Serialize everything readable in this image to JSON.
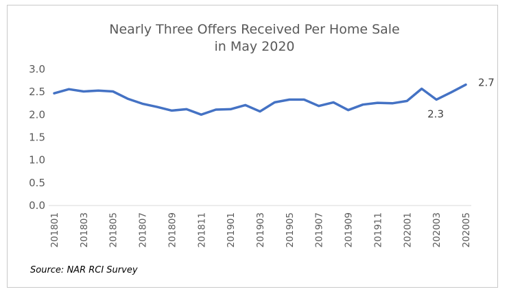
{
  "chart_data": {
    "type": "line",
    "title": [
      "Nearly Three Offers Received Per Home Sale",
      "in May 2020"
    ],
    "xlabel": "",
    "ylabel": "",
    "ylim": [
      0,
      3.0
    ],
    "yticks": [
      "0.0",
      "0.5",
      "1.0",
      "1.5",
      "2.0",
      "2.5",
      "3.0"
    ],
    "categories": [
      "201801",
      "201802",
      "201803",
      "201804",
      "201805",
      "201806",
      "201807",
      "201808",
      "201809",
      "201810",
      "201811",
      "201812",
      "201901",
      "201902",
      "201903",
      "201904",
      "201905",
      "201906",
      "201907",
      "201908",
      "201909",
      "201910",
      "201911",
      "201912",
      "202001",
      "202002",
      "202003",
      "202004",
      "202005"
    ],
    "x_tick_labels": [
      "201801",
      "201803",
      "201805",
      "201807",
      "201809",
      "201811",
      "201901",
      "201903",
      "201905",
      "201907",
      "201909",
      "201911",
      "202001",
      "202003",
      "202005"
    ],
    "series": [
      {
        "values": [
          2.47,
          2.56,
          2.51,
          2.53,
          2.51,
          2.35,
          2.24,
          2.17,
          2.09,
          2.12,
          2.0,
          2.11,
          2.12,
          2.21,
          2.07,
          2.27,
          2.33,
          2.33,
          2.19,
          2.27,
          2.1,
          2.22,
          2.26,
          2.25,
          2.3,
          2.57,
          2.33,
          2.49,
          2.66
        ],
        "color": "#4472C4"
      }
    ],
    "annotations": [
      {
        "category": "202003",
        "text": "2.3"
      },
      {
        "category": "202005",
        "text": "2.7"
      }
    ],
    "grid": false,
    "legend": "none"
  },
  "source_note": "Source: NAR RCI Survey"
}
